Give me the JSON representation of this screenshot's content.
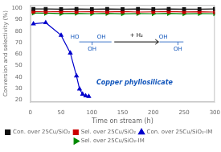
{
  "chart_data": {
    "type": "line",
    "xlabel": "Time on stream (h)",
    "ylabel": "Conversion and selectivity (%)",
    "xlim": [
      0,
      300
    ],
    "xticks": [
      0,
      50,
      100,
      150,
      200,
      250,
      300
    ],
    "ylim": [
      18,
      103
    ],
    "yticks": [
      20,
      30,
      40,
      50,
      60,
      70,
      80,
      90,
      100
    ],
    "grid": false,
    "legend": "bottom",
    "series": [
      {
        "name": "Con. over 25Cu/SiO₂",
        "color": "#111111",
        "marker": "square",
        "x": [
          5,
          25,
          50,
          75,
          100,
          125,
          150,
          175,
          200,
          225,
          250,
          275,
          300
        ],
        "values": [
          99.5,
          99.6,
          99.4,
          99.5,
          99.3,
          99.5,
          99.4,
          99.5,
          99.3,
          99.5,
          99.4,
          99.3,
          99.5
        ]
      },
      {
        "name": "Sel. over 25Cu/SiO₂",
        "color": "#cc0000",
        "marker": "square",
        "x": [
          5,
          25,
          50,
          75,
          100,
          125,
          150,
          175,
          200,
          225,
          250,
          275,
          300
        ],
        "values": [
          97.2,
          97.0,
          97.3,
          97.0,
          97.1,
          96.9,
          97.2,
          96.8,
          97.0,
          97.2,
          96.9,
          97.1,
          96.8
        ]
      },
      {
        "name": "Con. over 25Cu/SiO₂-IM",
        "color": "#0000cc",
        "marker": "triangle",
        "x": [
          5,
          25,
          50,
          65,
          75,
          80,
          85,
          90,
          95
        ],
        "values": [
          86.5,
          87.5,
          76.5,
          61.0,
          41.0,
          29.5,
          25.0,
          23.5,
          23.0
        ]
      },
      {
        "name": "Sel. over 25Cu/SiO₂-IM",
        "color": "#008800",
        "marker": "triangle_right",
        "x": [
          5,
          25,
          50,
          75,
          100,
          125,
          150,
          175,
          200,
          225,
          250,
          275,
          300
        ],
        "values": [
          96.0,
          95.8,
          95.5,
          95.7,
          95.4,
          95.6,
          95.3,
          95.5,
          95.4,
          95.6,
          95.3,
          95.5,
          95.4
        ]
      }
    ],
    "annotations": [
      "HO",
      "OH",
      "OH",
      "+ H₂",
      "OH",
      "OH",
      "Copper phyllosilicate"
    ]
  }
}
